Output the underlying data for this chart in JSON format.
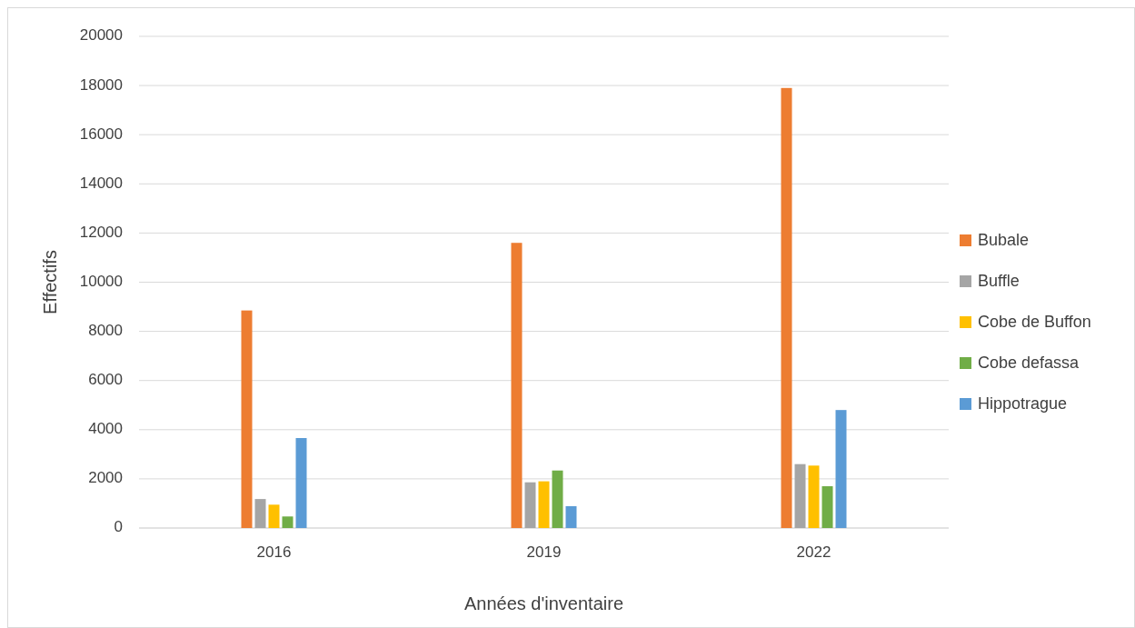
{
  "chart_data": {
    "type": "bar",
    "xlabel": "Années d'inventaire",
    "ylabel": "Effectifs",
    "categories": [
      "2016",
      "2019",
      "2022"
    ],
    "series": [
      {
        "name": "Bubale",
        "color": "#ed7d31",
        "values": [
          8850,
          11600,
          17900
        ]
      },
      {
        "name": "Buffle",
        "color": "#a5a5a5",
        "values": [
          1180,
          1860,
          2600
        ]
      },
      {
        "name": "Cobe de Buffon",
        "color": "#ffc000",
        "values": [
          950,
          1900,
          2540
        ]
      },
      {
        "name": "Cobe defassa",
        "color": "#70ad47",
        "values": [
          470,
          2340,
          1700
        ]
      },
      {
        "name": "Hippotrague",
        "color": "#5b9bd5",
        "values": [
          3660,
          890,
          4800
        ]
      }
    ],
    "ylim": [
      0,
      20000
    ],
    "yticks": [
      0,
      2000,
      4000,
      6000,
      8000,
      10000,
      12000,
      14000,
      16000,
      18000,
      20000
    ],
    "grid": "y",
    "legend": "right"
  }
}
